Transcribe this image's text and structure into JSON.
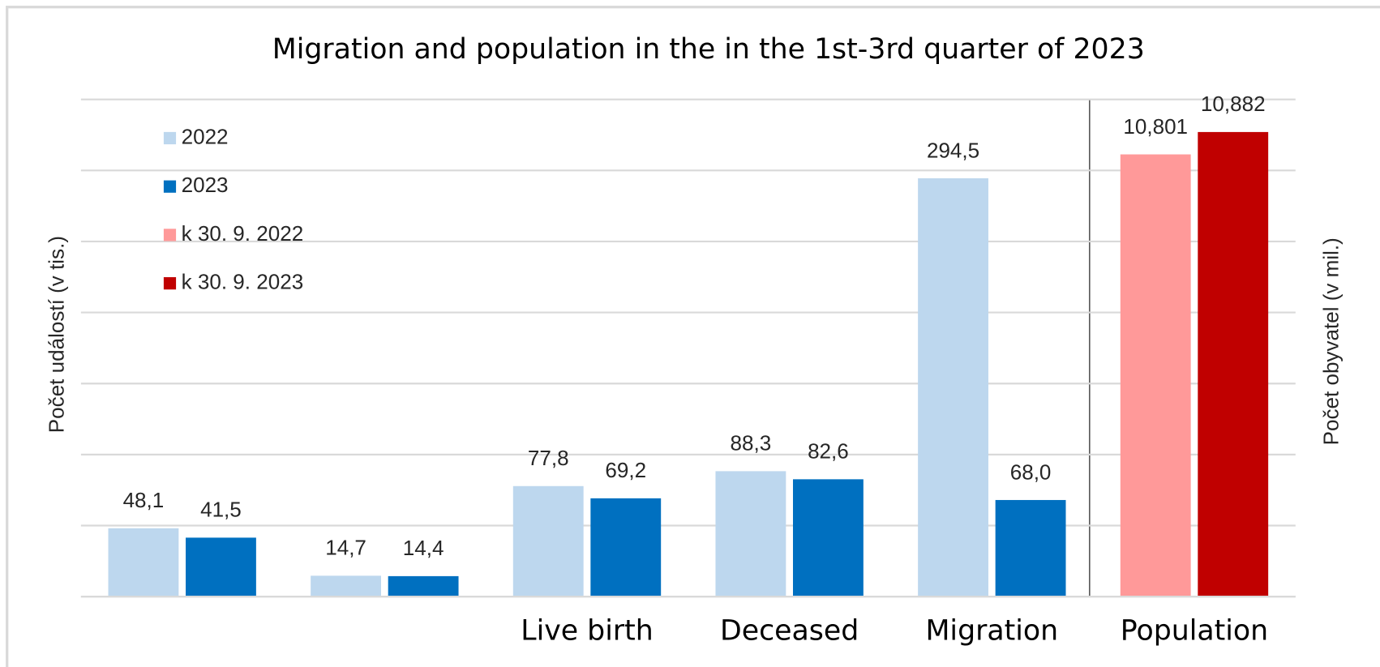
{
  "chart_data": {
    "type": "bar",
    "title": "Migration and population in the in the 1st-3rd quarter of 2023",
    "y_label": "Počet událostí  (v tis.)",
    "y2_label": "Počet obyvatel  (v mil.)",
    "categories": [
      null,
      null,
      "Live birth",
      "Deceased",
      "Migration",
      "Population"
    ],
    "series": [
      {
        "name": "2022",
        "color": "#bdd7ee",
        "values": [
          48.1,
          14.7,
          77.8,
          88.3,
          294.5,
          null
        ],
        "value_labels": [
          "48,1",
          "14,7",
          "77,8",
          "88,3",
          "294,5",
          null
        ]
      },
      {
        "name": "2023",
        "color": "#0070c0",
        "values": [
          41.5,
          14.4,
          69.2,
          82.6,
          68.0,
          null
        ],
        "value_labels": [
          "41,5",
          "14,4",
          "69,2",
          "82,6",
          "68,0",
          null
        ]
      },
      {
        "name": "k 30. 9. 2022",
        "color": "#ff9999",
        "axis": "y2",
        "values": [
          null,
          null,
          null,
          null,
          null,
          10.801
        ],
        "value_labels": [
          null,
          null,
          null,
          null,
          null,
          "10,801"
        ]
      },
      {
        "name": "k 30. 9. 2023",
        "color": "#c00000",
        "axis": "y2",
        "values": [
          null,
          null,
          null,
          null,
          null,
          10.882
        ],
        "value_labels": [
          null,
          null,
          null,
          null,
          null,
          "10,882"
        ]
      }
    ],
    "ylim": [
      0,
      350
    ],
    "yticks": [
      0,
      50,
      100,
      150,
      200,
      250,
      300,
      350
    ],
    "y2lim": [
      9.2,
      11.0
    ],
    "grid": true,
    "legend": "upper left"
  }
}
